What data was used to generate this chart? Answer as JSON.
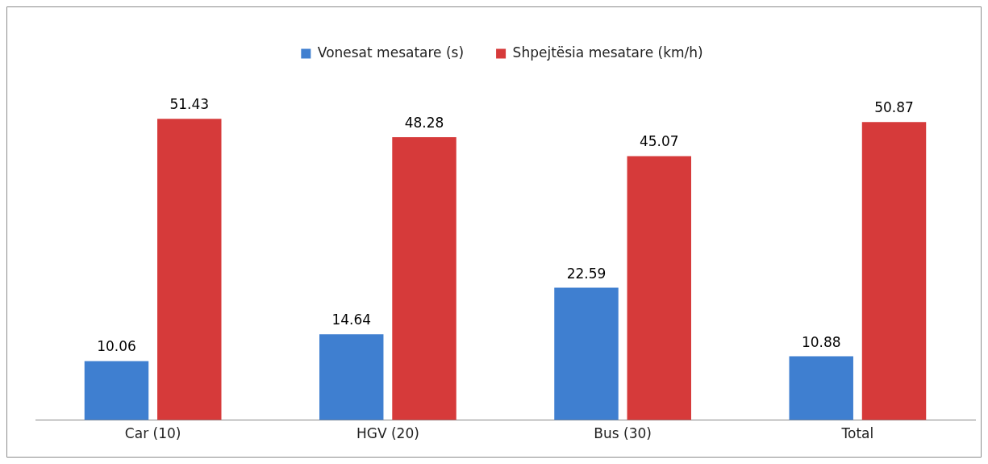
{
  "chart_data": {
    "type": "bar",
    "categories": [
      "Car (10)",
      "HGV (20)",
      "Bus (30)",
      "Total"
    ],
    "series": [
      {
        "name": "Vonesat mesatare (s)",
        "color": "#3f7fd0",
        "values": [
          10.06,
          14.64,
          22.59,
          10.88
        ]
      },
      {
        "name": "Shpejtësia mesatare (km/h)",
        "color": "#d63a3a",
        "values": [
          51.43,
          48.28,
          45.07,
          50.87
        ]
      }
    ],
    "data_labels": true,
    "legend": "top",
    "grid": false
  }
}
